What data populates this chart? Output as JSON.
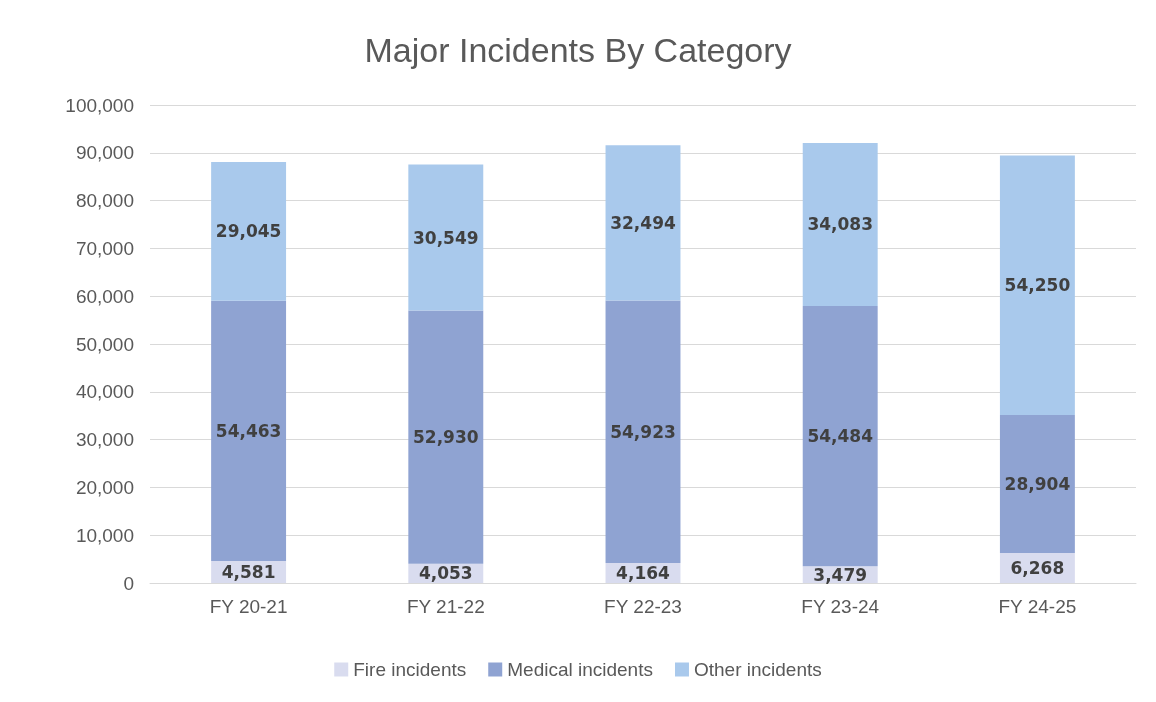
{
  "chart_data": {
    "type": "bar",
    "title": "Major Incidents By Category",
    "stacked": true,
    "grid": "y",
    "legend": "bottom",
    "categories": [
      "FY 20-21",
      "FY 21-22",
      "FY 22-23",
      "FY 23-24",
      "FY 24-25"
    ],
    "series": [
      {
        "name": "Fire incidents",
        "color": "#d9dcef",
        "values": [
          4581,
          4053,
          4164,
          3479,
          6268
        ],
        "value_labels": [
          "4,581",
          "4,053",
          "4,164",
          "3,479",
          "6,268"
        ]
      },
      {
        "name": "Medical incidents",
        "color": "#8fa3d2",
        "values": [
          54463,
          52930,
          54923,
          54484,
          28904
        ],
        "value_labels": [
          "54,463",
          "52,930",
          "54,923",
          "54,484",
          "28,904"
        ]
      },
      {
        "name": "Other incidents",
        "color": "#a9c9ec",
        "values": [
          29045,
          30549,
          32494,
          34083,
          54250
        ],
        "value_labels": [
          "29,045",
          "30,549",
          "32,494",
          "34,083",
          "54,250"
        ]
      }
    ],
    "ylim": [
      0,
      100000
    ],
    "yticks": [
      {
        "value": 0,
        "label": "0"
      },
      {
        "value": 10000,
        "label": "10,000"
      },
      {
        "value": 20000,
        "label": "20,000"
      },
      {
        "value": 30000,
        "label": "30,000"
      },
      {
        "value": 40000,
        "label": "40,000"
      },
      {
        "value": 50000,
        "label": "50,000"
      },
      {
        "value": 60000,
        "label": "60,000"
      },
      {
        "value": 70000,
        "label": "70,000"
      },
      {
        "value": 80000,
        "label": "80,000"
      },
      {
        "value": 90000,
        "label": "90,000"
      },
      {
        "value": 100000,
        "label": "100,000"
      }
    ]
  }
}
